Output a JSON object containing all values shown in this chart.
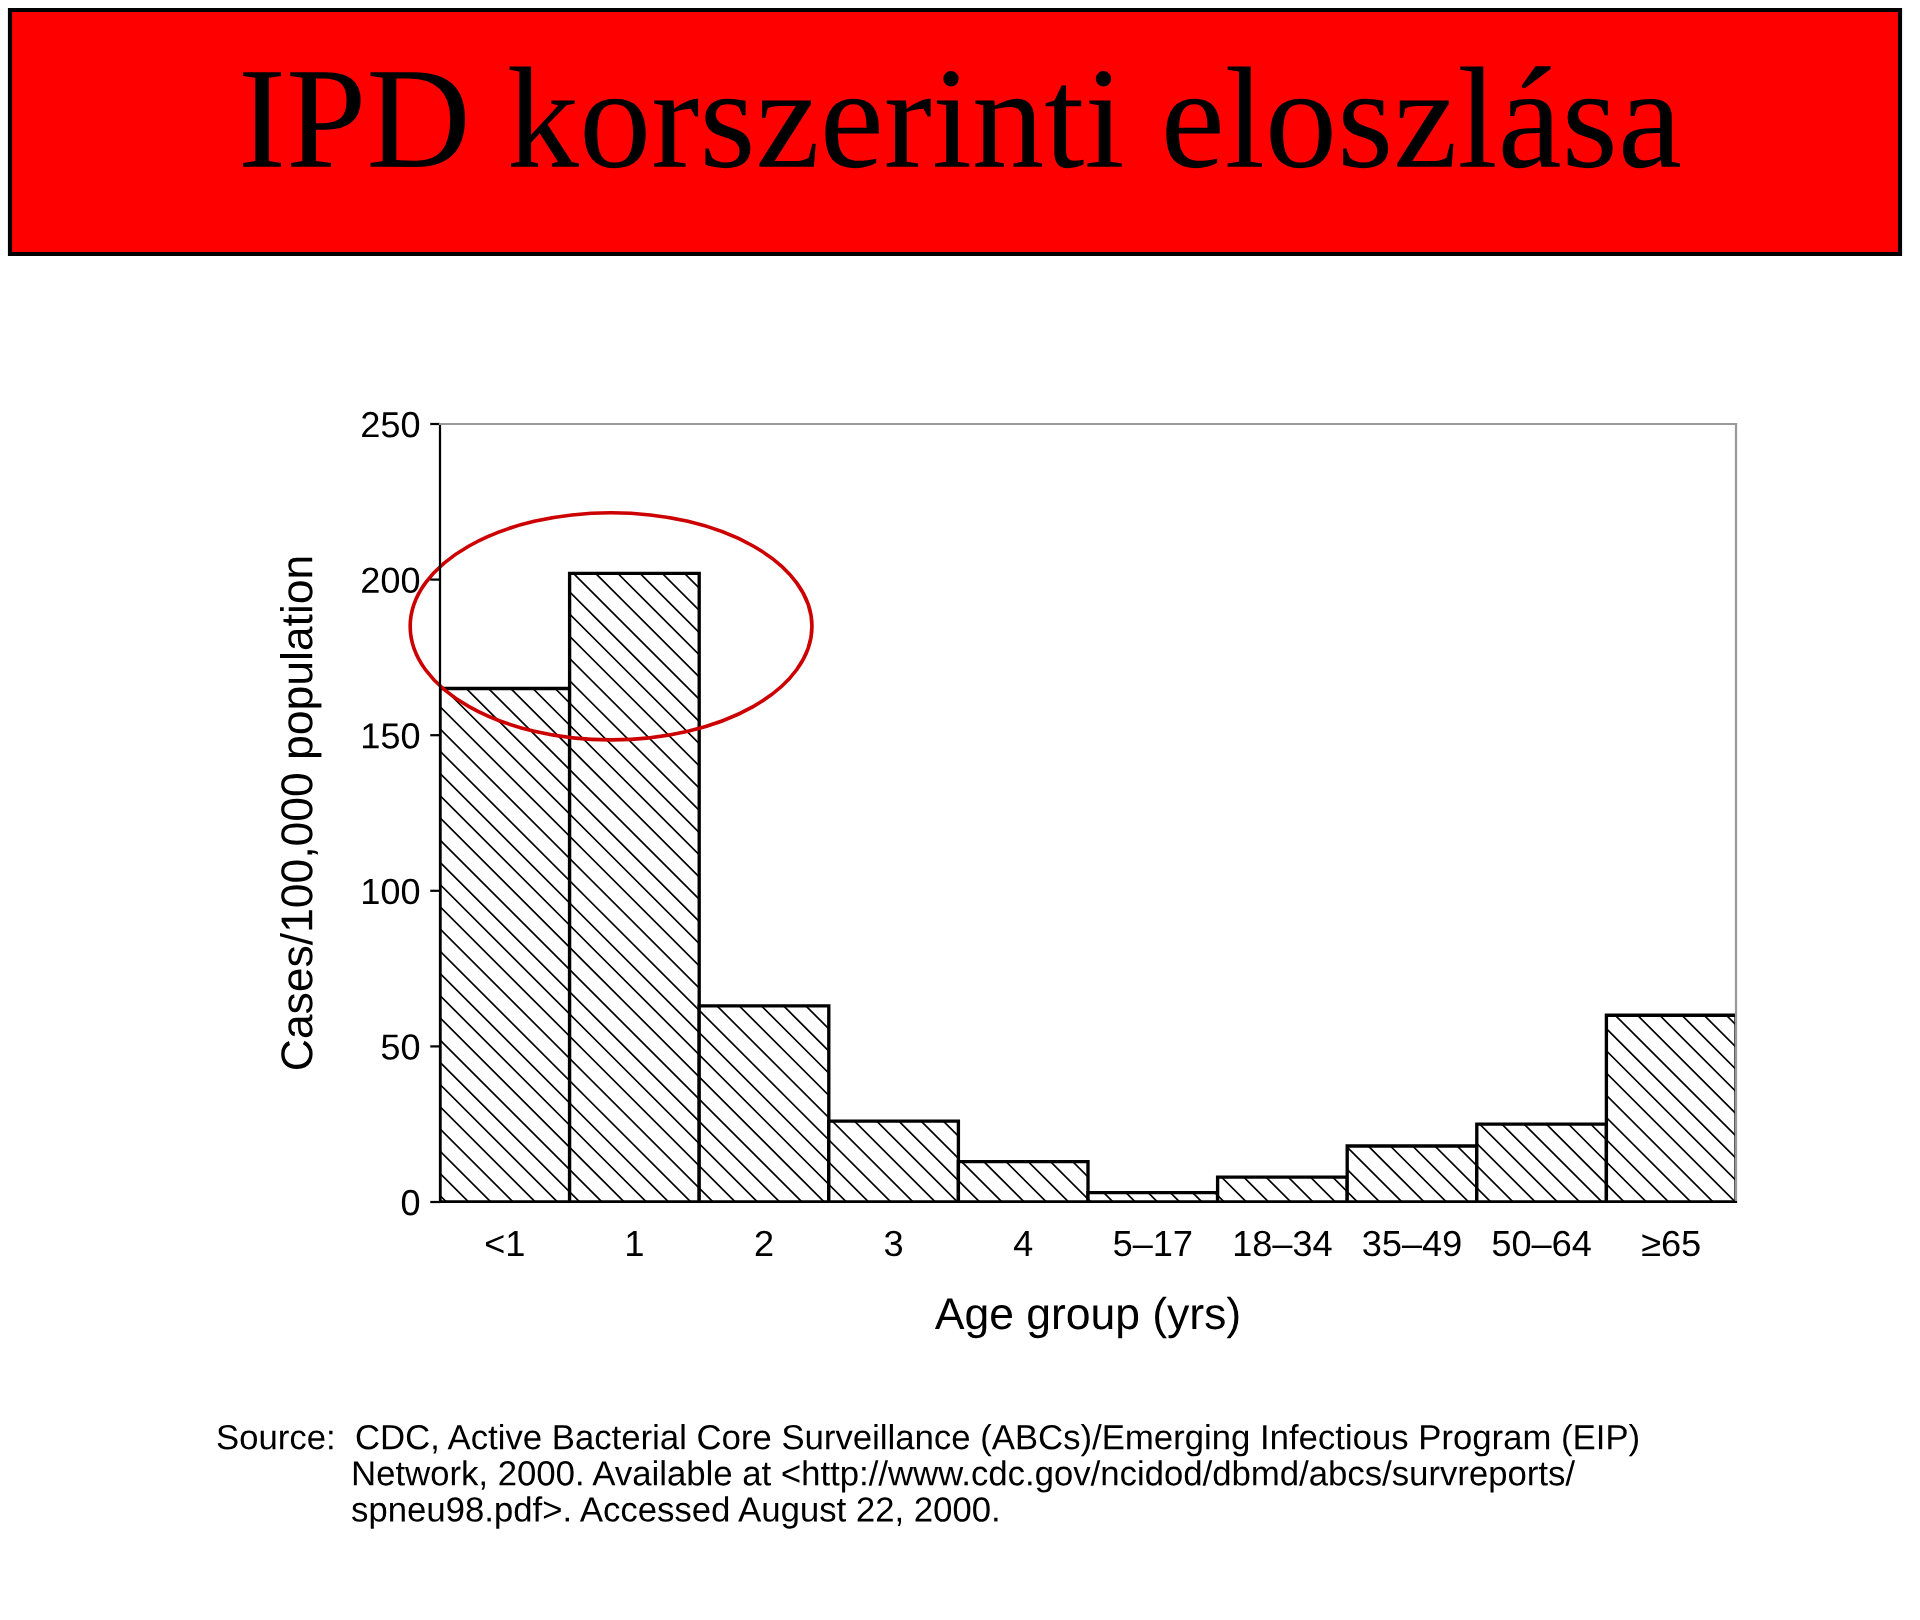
{
  "chart_data": {
    "type": "bar",
    "title": "IPD korszerinti eloszlása",
    "xlabel": "Age group (yrs)",
    "ylabel": "Cases/100,000 population",
    "categories": [
      "<1",
      "1",
      "2",
      "3",
      "4",
      "5–17",
      "18–34",
      "35–49",
      "50–64",
      "≥65"
    ],
    "values": [
      165,
      202,
      63,
      26,
      13,
      3,
      8,
      18,
      25,
      60
    ],
    "color": "#000000",
    "ylim": [
      0,
      250
    ],
    "yticks": [
      0,
      50,
      100,
      150,
      200,
      250
    ],
    "grid": false,
    "annotations": [
      "Source:  CDC, Active Bacterial Core Surveillance (ABCs)/Emerging Infectious Program (EIP)\n              Network, 2000. Available at <http://www.cdc.gov/ncidod/dbmd/abcs/survreports/\n              spneu98.pdf>. Accessed August 22, 2000."
    ]
  }
}
